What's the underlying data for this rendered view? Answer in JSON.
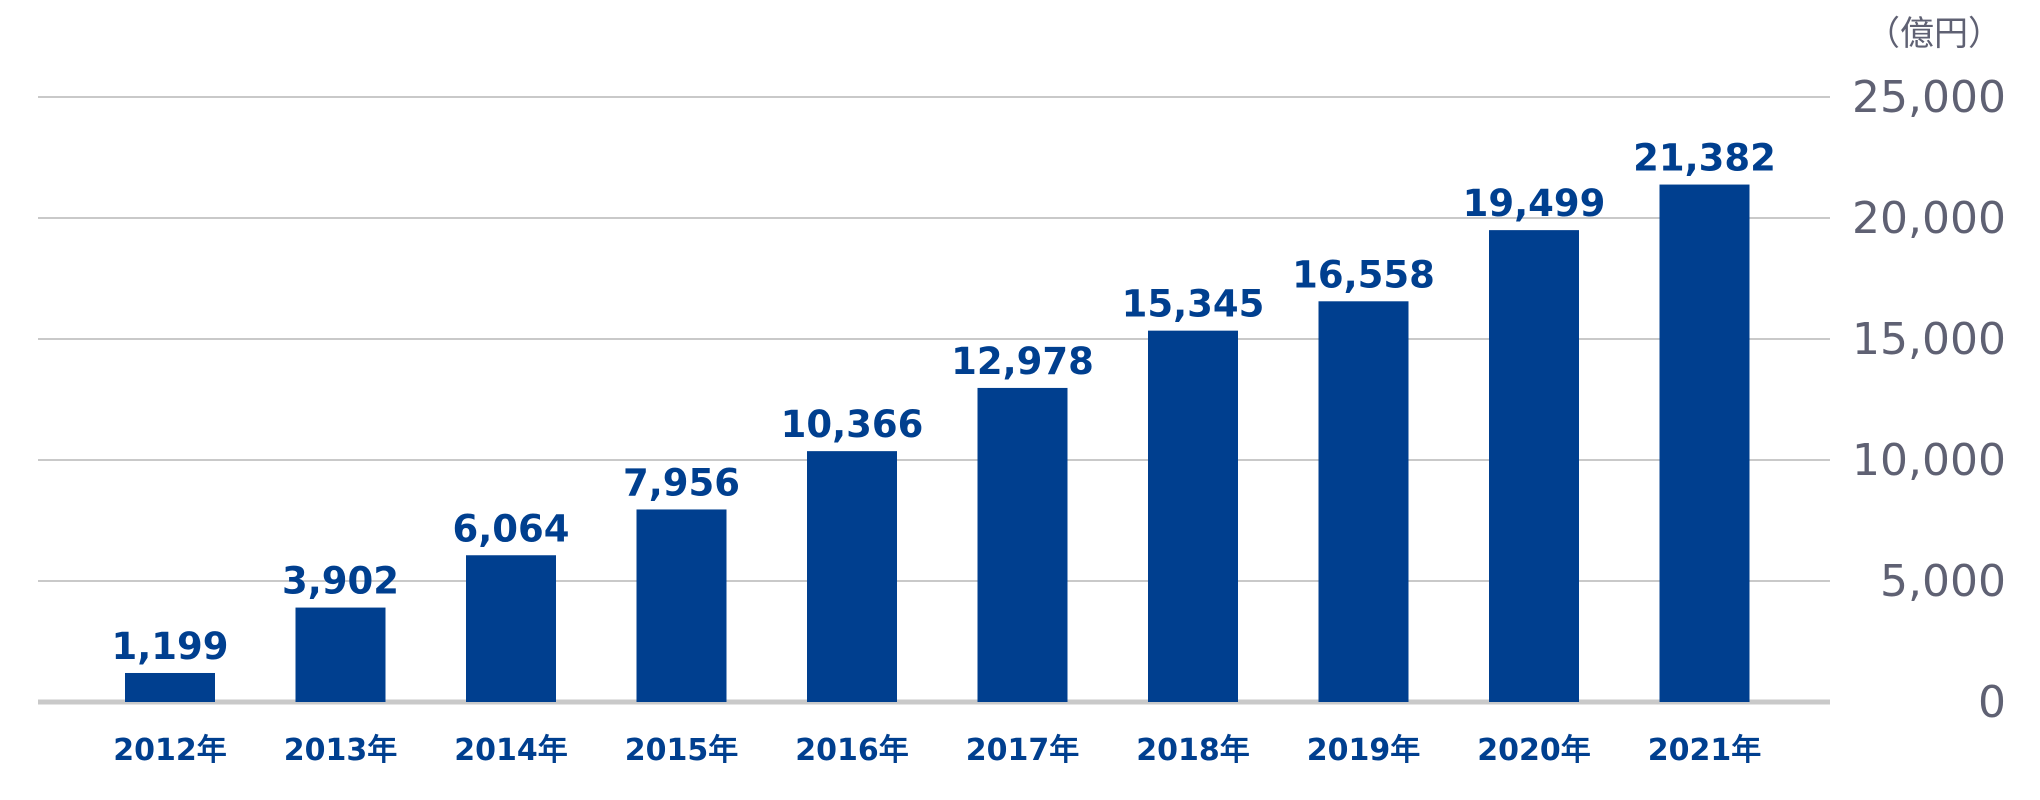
{
  "chart_data": {
    "type": "bar",
    "title": "",
    "xlabel": "",
    "ylabel": "",
    "unit": "（億円）",
    "categories": [
      "2012年",
      "2013年",
      "2014年",
      "2015年",
      "2016年",
      "2017年",
      "2018年",
      "2019年",
      "2020年",
      "2021年"
    ],
    "values": [
      1199,
      3902,
      6064,
      7956,
      10366,
      12978,
      15345,
      16558,
      19499,
      21382
    ],
    "value_labels": [
      "1,199",
      "3,902",
      "6,064",
      "7,956",
      "10,366",
      "12,978",
      "15,345",
      "16,558",
      "19,499",
      "21,382"
    ],
    "ylim": [
      0,
      25000
    ],
    "yticks": [
      0,
      5000,
      10000,
      15000,
      20000,
      25000
    ],
    "ytick_labels": [
      "0",
      "5,000",
      "10,000",
      "15,000",
      "20,000",
      "25,000"
    ],
    "grid": true,
    "y_axis_position": "right",
    "colors": {
      "bar": "#003f8f",
      "grid": "#c9c9c9",
      "tick_text": "#5f6173"
    }
  }
}
